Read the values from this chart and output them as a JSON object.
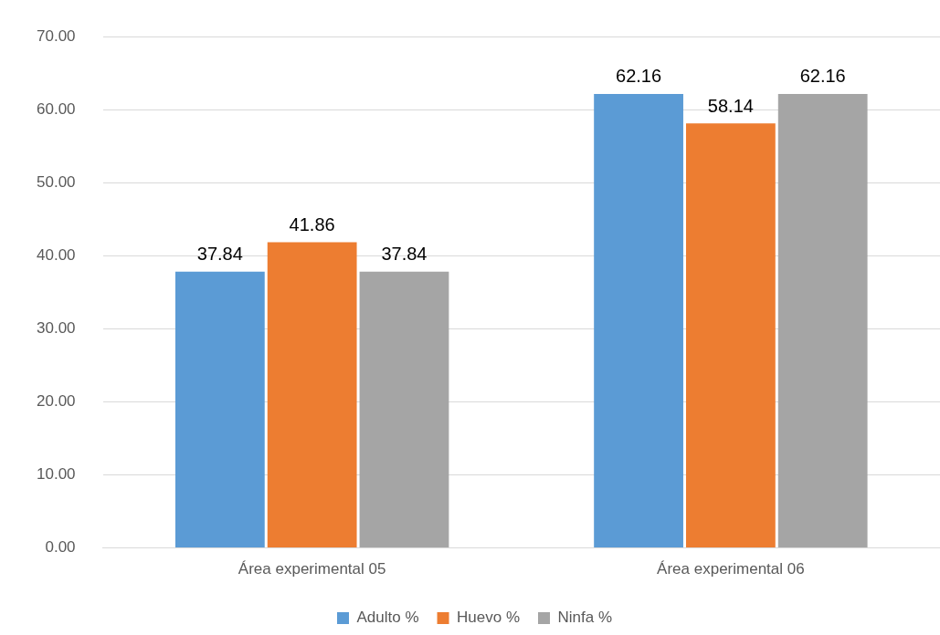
{
  "chart_data": {
    "type": "bar",
    "categories": [
      "Área experimental 05",
      "Área experimental 06"
    ],
    "series": [
      {
        "name": "Adulto %",
        "color": "#5b9bd5",
        "values": [
          37.84,
          62.16
        ]
      },
      {
        "name": "Huevo %",
        "color": "#ed7d31",
        "values": [
          41.86,
          58.14
        ]
      },
      {
        "name": "Ninfa %",
        "color": "#a5a5a5",
        "values": [
          37.84,
          62.16
        ]
      }
    ],
    "ylim": [
      0,
      70
    ],
    "yticks": [
      {
        "value": 0,
        "label": "0.00"
      },
      {
        "value": 10,
        "label": "10.00"
      },
      {
        "value": 20,
        "label": "20.00"
      },
      {
        "value": 30,
        "label": "30.00"
      },
      {
        "value": 40,
        "label": "40.00"
      },
      {
        "value": 50,
        "label": "50.00"
      },
      {
        "value": 60,
        "label": "60.00"
      },
      {
        "value": 70,
        "label": "70.00"
      }
    ],
    "grid": "y",
    "legend": "bottom",
    "data_labels": true
  }
}
